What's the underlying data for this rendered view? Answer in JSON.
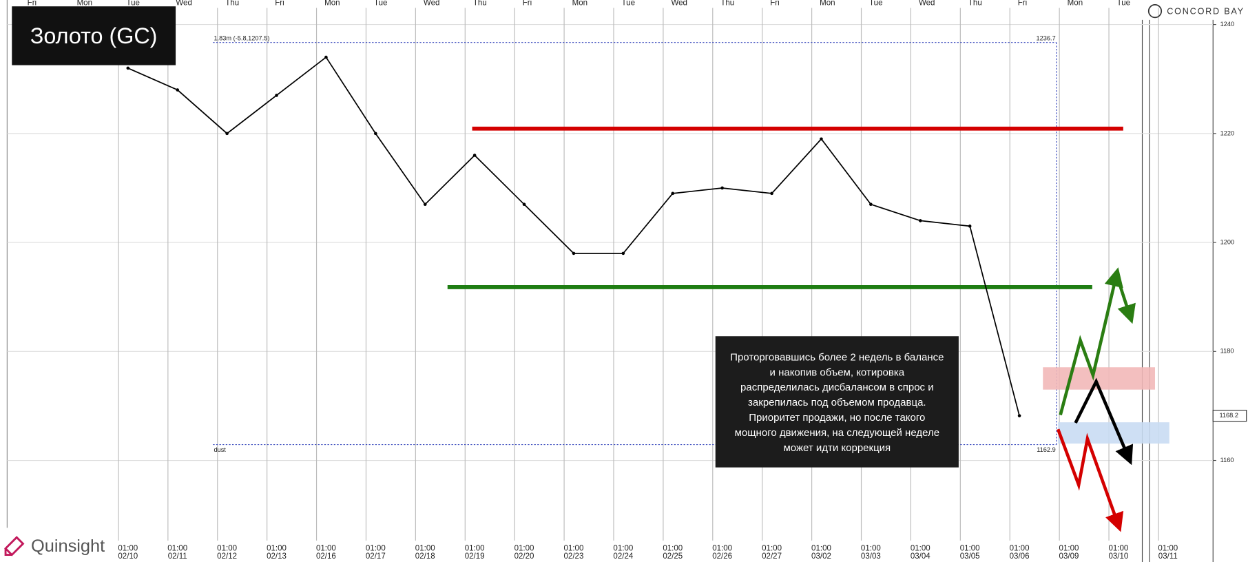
{
  "chart_data": {
    "type": "line",
    "title": "Золото (GC)",
    "categories": [
      "02/10",
      "02/11",
      "02/12",
      "02/13",
      "02/16",
      "02/17",
      "02/18",
      "02/19",
      "02/20",
      "02/23",
      "02/24",
      "02/25",
      "02/26",
      "02/27",
      "03/02",
      "03/03",
      "03/04",
      "03/05",
      "03/06",
      "03/09",
      "03/10",
      "03/11"
    ],
    "time_label": "01:00",
    "day_labels": [
      "Fri",
      "Mon",
      "Tue",
      "Wed",
      "Thu",
      "Fri",
      "Mon",
      "Tue",
      "Wed",
      "Thu",
      "Fri",
      "Mon",
      "Tue",
      "Wed",
      "Thu",
      "Fri",
      "Mon",
      "Tue",
      "Wed",
      "Thu",
      "Fri",
      "Mon",
      "Tue"
    ],
    "values": [
      1232,
      1228,
      1220,
      1227,
      1234,
      1220,
      1207,
      1216,
      1207,
      1198,
      1198,
      1209,
      1210,
      1209,
      1219,
      1207,
      1204,
      1203,
      1168.2,
      null,
      null,
      null
    ],
    "color": "#000000",
    "ylim": [
      1145.3,
      1244.5
    ],
    "yticks": [
      1160,
      1180,
      1200,
      1220,
      1240
    ],
    "last_price": 1168.2,
    "levels": [
      {
        "value": 1220.9,
        "color": "#d40000"
      },
      {
        "value": 1191.8,
        "color": "#1e7d12"
      }
    ],
    "range_box": {
      "high": 1236.7,
      "low": 1162.9,
      "info": "1.83m (-5.8,1207.5)",
      "footer": "dust"
    },
    "zones": [
      {
        "low": 1173.0,
        "high": 1177.1,
        "color": "#f2b8b8"
      },
      {
        "low": 1163.1,
        "high": 1167.0,
        "color": "#c9dbf3"
      }
    ],
    "annotation": [
      "Проторговавшись более 2 недель в балансе",
      "и накопив объем, котировка",
      "распределилась дисбалансом в спрос и",
      "закрепилась под объемом продавца.",
      "Приоритет продажи, но после такого",
      "мощного движения, на следующей неделе",
      "может идти коррекция"
    ],
    "brand": "CONCORD BAY",
    "logo_text": "Quinsight"
  }
}
